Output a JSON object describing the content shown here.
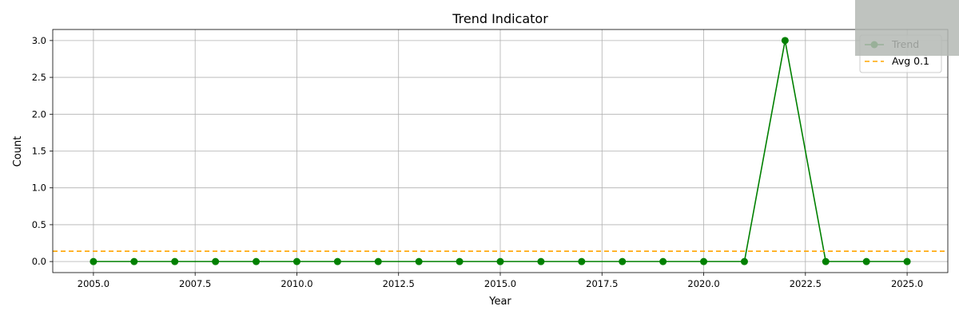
{
  "chart_data": {
    "type": "line",
    "title": "Trend Indicator",
    "xlabel": "Year",
    "ylabel": "Count",
    "xlim": [
      2004.0,
      2026.0
    ],
    "ylim": [
      -0.15,
      3.15
    ],
    "x_ticks": [
      2005.0,
      2007.5,
      2010.0,
      2012.5,
      2015.0,
      2017.5,
      2020.0,
      2022.5,
      2025.0
    ],
    "x_tick_labels": [
      "2005.0",
      "2007.5",
      "2010.0",
      "2012.5",
      "2015.0",
      "2017.5",
      "2020.0",
      "2022.5",
      "2025.0"
    ],
    "y_ticks": [
      0.0,
      0.5,
      1.0,
      1.5,
      2.0,
      2.5,
      3.0
    ],
    "y_tick_labels": [
      "0.0",
      "0.5",
      "1.0",
      "1.5",
      "2.0",
      "2.5",
      "3.0"
    ],
    "grid": true,
    "legend_position": "top-right",
    "series": [
      {
        "name": "Trend",
        "color": "#008000",
        "style": "solid-with-circle-markers",
        "x": [
          2005,
          2006,
          2007,
          2008,
          2009,
          2010,
          2011,
          2012,
          2013,
          2014,
          2015,
          2016,
          2017,
          2018,
          2019,
          2020,
          2021,
          2022,
          2023,
          2024,
          2025
        ],
        "y": [
          0,
          0,
          0,
          0,
          0,
          0,
          0,
          0,
          0,
          0,
          0,
          0,
          0,
          0,
          0,
          0,
          0,
          3,
          0,
          0,
          0
        ]
      },
      {
        "name": "Avg 0.1",
        "color": "#FFA500",
        "style": "dashed-horizontal",
        "y_value": 0.14
      }
    ]
  }
}
